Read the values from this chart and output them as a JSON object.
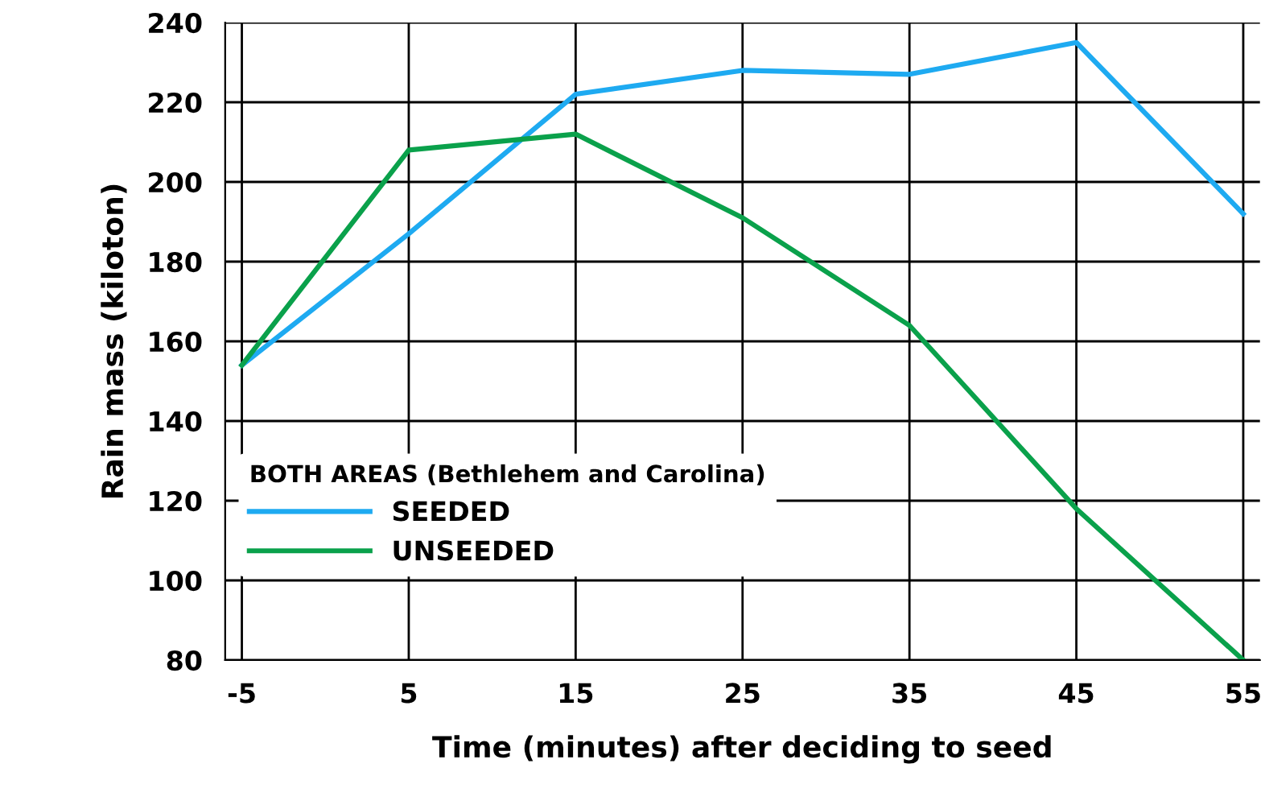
{
  "chart_data": {
    "type": "line",
    "xlabel": "Time (minutes) after deciding to seed",
    "ylabel": "Rain mass (kiloton)",
    "legend_title": "BOTH AREAS (Bethlehem and Carolina)",
    "x": [
      -5,
      5,
      15,
      25,
      35,
      45,
      55
    ],
    "series": [
      {
        "name": "SEEDED",
        "color": "#1eaaf1",
        "values": [
          154,
          187,
          222,
          228,
          227,
          235,
          192
        ]
      },
      {
        "name": "UNSEEDED",
        "color": "#0aa14b",
        "values": [
          154,
          208,
          212,
          191,
          164,
          118,
          80
        ]
      }
    ],
    "xlim": [
      -6,
      56
    ],
    "xticks": [
      -5,
      5,
      15,
      25,
      35,
      45,
      55
    ],
    "ylim": [
      80,
      240
    ],
    "yticks": [
      80,
      100,
      120,
      140,
      160,
      180,
      200,
      220,
      240
    ],
    "grid": true,
    "legend": "lower left",
    "marker": "none",
    "line_style": "solid"
  }
}
